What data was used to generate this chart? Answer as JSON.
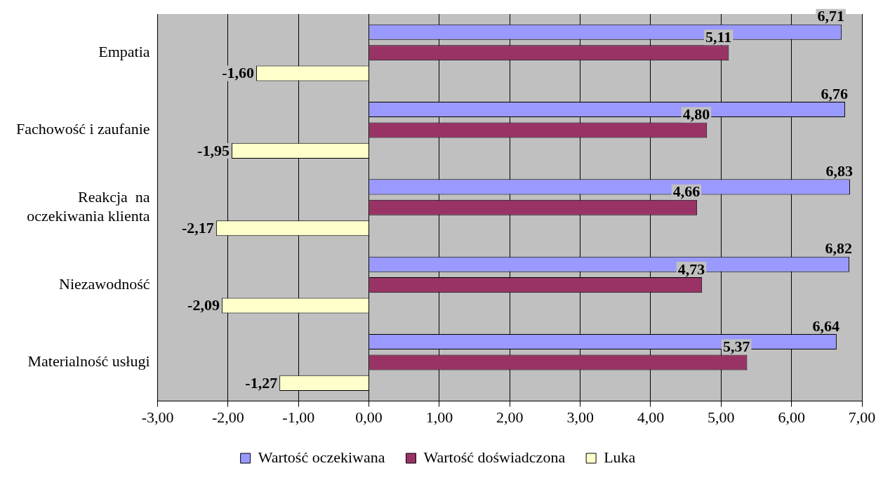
{
  "chart_data": {
    "type": "bar",
    "orientation": "horizontal",
    "categories": [
      "Empatia",
      "Fachowość i zaufanie",
      "Reakcja  na\noczekiwania klienta",
      "Niezawodność",
      "Materialność usługi"
    ],
    "series": [
      {
        "name": "Wartość oczekiwana",
        "color": "#9999ff",
        "values": [
          6.71,
          6.76,
          6.83,
          6.82,
          6.64
        ],
        "value_labels": [
          "6,71",
          "6,76",
          "6,83",
          "6,82",
          "6,64"
        ]
      },
      {
        "name": "Wartość doświadczona",
        "color": "#993366",
        "values": [
          5.11,
          4.8,
          4.66,
          4.73,
          5.37
        ],
        "value_labels": [
          "5,11",
          "4,80",
          "4,66",
          "4,73",
          "5,37"
        ]
      },
      {
        "name": "Luka",
        "color": "#ffffcc",
        "values": [
          -1.6,
          -1.95,
          -2.17,
          -2.09,
          -1.27
        ],
        "value_labels": [
          "-1,60",
          "-1,95",
          "-2,17",
          "-2,09",
          "-1,27"
        ]
      }
    ],
    "xlim": [
      -3,
      7
    ],
    "xticks": [
      {
        "value": -3,
        "label": "-3,00"
      },
      {
        "value": -2,
        "label": "-2,00"
      },
      {
        "value": -1,
        "label": "-1,00"
      },
      {
        "value": 0,
        "label": "0,00"
      },
      {
        "value": 1,
        "label": "1,00"
      },
      {
        "value": 2,
        "label": "2,00"
      },
      {
        "value": 3,
        "label": "3,00"
      },
      {
        "value": 4,
        "label": "4,00"
      },
      {
        "value": 5,
        "label": "5,00"
      },
      {
        "value": 6,
        "label": "6,00"
      },
      {
        "value": 7,
        "label": "7,00"
      }
    ],
    "grid": "x",
    "legend": "bottom"
  }
}
